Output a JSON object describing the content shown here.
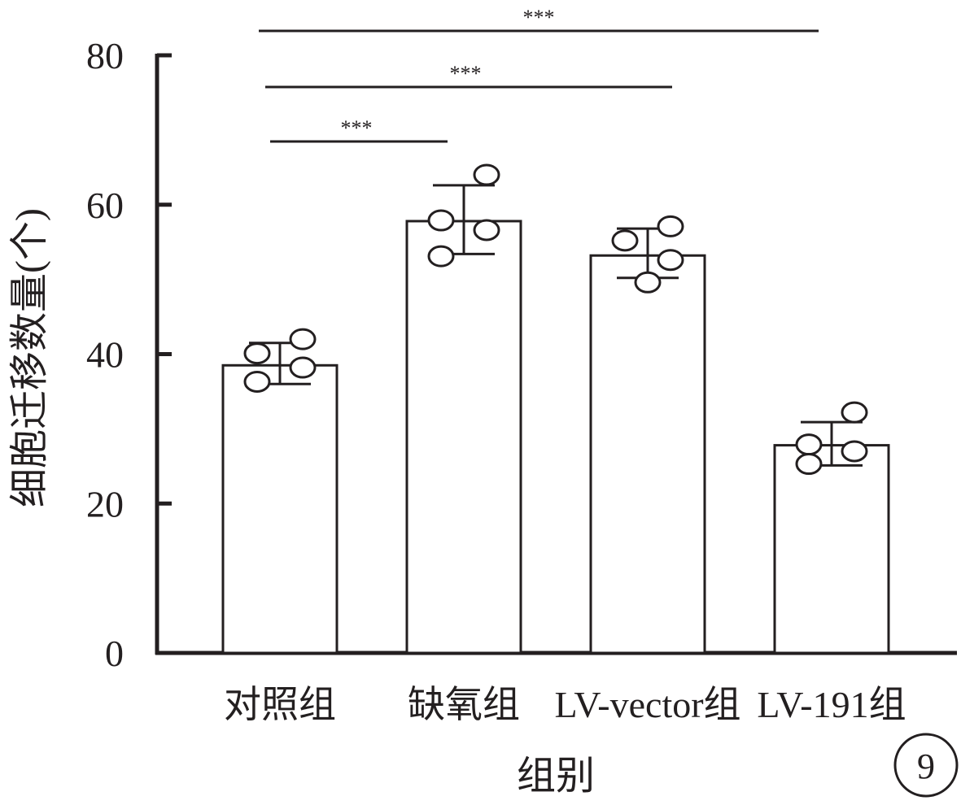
{
  "chart_data": {
    "type": "bar",
    "title": "",
    "xlabel": "组别",
    "ylabel": "细胞迁移数量(个)",
    "ylim": [
      0,
      80
    ],
    "yticks": [
      0,
      20,
      40,
      60,
      80
    ],
    "grid": false,
    "categories": [
      "对照组",
      "缺氧组",
      "LV-vector组",
      "LV-191组"
    ],
    "values": [
      38.5,
      57.8,
      53.2,
      27.8
    ],
    "error": [
      [
        36.0,
        41.5
      ],
      [
        53.4,
        62.6
      ],
      [
        50.2,
        56.8
      ],
      [
        25.1,
        30.9
      ]
    ],
    "points": [
      [
        40.1,
        42.0,
        36.3,
        38.2
      ],
      [
        57.9,
        64.0,
        53.1,
        56.6
      ],
      [
        55.2,
        57.1,
        52.6,
        49.6
      ],
      [
        27.9,
        32.2,
        25.3,
        27.0
      ]
    ],
    "significance": [
      {
        "from": 0,
        "to": 1,
        "label": "***"
      },
      {
        "from": 0,
        "to": 2,
        "label": "***"
      },
      {
        "from": 0,
        "to": 3,
        "label": "***"
      }
    ]
  },
  "badge": "9"
}
